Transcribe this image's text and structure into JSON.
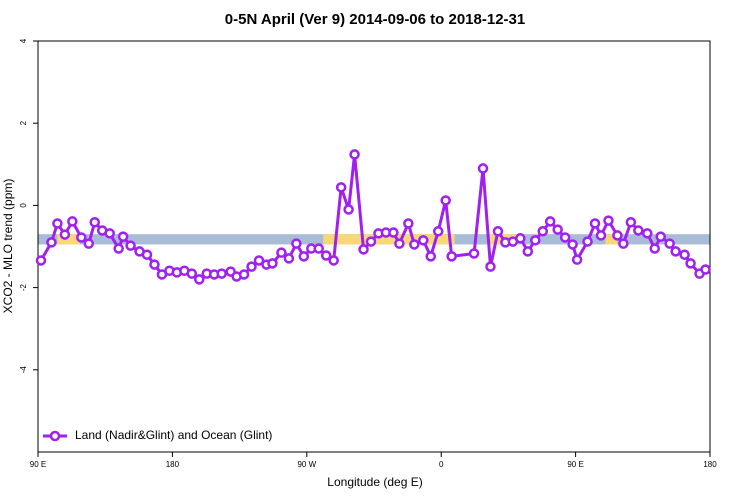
{
  "chart_data": {
    "type": "line",
    "title": "0-5N April (Ver 9)   2014-09-06 to 2018-12-31",
    "x_label": "Longitude (deg E)",
    "y_label": "XCO2 - MLO trend (ppm)",
    "xlim": [
      90,
      540
    ],
    "ylim": [
      -6,
      4
    ],
    "xticks": [
      {
        "value": 90,
        "label": "90 E"
      },
      {
        "value": 180,
        "label": "180"
      },
      {
        "value": 270,
        "label": "90 W"
      },
      {
        "value": 360,
        "label": "0"
      },
      {
        "value": 450,
        "label": "90 E"
      },
      {
        "value": 540,
        "label": "180"
      }
    ],
    "yticks": [
      -4,
      -2,
      0,
      2,
      4
    ],
    "legend_position": "bottom-left",
    "band": {
      "range": [
        -0.95,
        -0.7
      ],
      "color": "#a8bcd8",
      "highlight_color": "#f8d778",
      "highlights": [
        [
          103,
          118
        ],
        [
          281,
          369
        ],
        [
          391,
          411
        ],
        [
          470,
          478
        ]
      ]
    },
    "x": [
      92,
      99,
      103,
      108,
      113,
      119,
      124,
      128,
      133,
      138,
      144,
      147,
      152,
      158,
      163,
      168,
      173,
      178,
      183,
      188,
      193,
      198,
      203,
      208,
      213,
      219,
      223,
      228,
      233,
      238,
      243,
      247,
      253,
      258,
      263,
      268,
      273,
      278,
      283,
      288,
      293,
      298,
      302,
      308,
      313,
      318,
      323,
      328,
      332,
      338,
      342,
      348,
      353,
      358,
      363,
      367,
      382,
      388,
      393,
      398,
      403,
      408,
      413,
      418,
      423,
      428,
      433,
      438,
      443,
      448,
      451,
      458,
      463,
      467,
      472,
      478,
      482,
      487,
      492,
      498,
      503,
      507,
      513,
      517,
      523,
      527,
      533,
      537
    ],
    "series": [
      {
        "name": "Land (Nadir&Glint) and Ocean (Glint)",
        "color": "#a020f0",
        "values": [
          -1.34,
          -0.9,
          -0.44,
          -0.71,
          -0.39,
          -0.78,
          -0.93,
          -0.41,
          -0.61,
          -0.68,
          -1.05,
          -0.76,
          -0.98,
          -1.12,
          -1.2,
          -1.44,
          -1.68,
          -1.59,
          -1.63,
          -1.59,
          -1.66,
          -1.8,
          -1.66,
          -1.68,
          -1.66,
          -1.61,
          -1.73,
          -1.68,
          -1.49,
          -1.34,
          -1.44,
          -1.41,
          -1.15,
          -1.29,
          -0.93,
          -1.24,
          -1.05,
          -1.05,
          -1.22,
          -1.34,
          0.44,
          -0.1,
          1.24,
          -1.07,
          -0.88,
          -0.68,
          -0.66,
          -0.66,
          -0.93,
          -0.44,
          -0.95,
          -0.85,
          -1.24,
          -0.63,
          0.12,
          -1.24,
          -1.17,
          0.9,
          -1.49,
          -0.63,
          -0.9,
          -0.88,
          -0.8,
          -1.12,
          -0.85,
          -0.63,
          -0.39,
          -0.59,
          -0.78,
          -0.95,
          -1.32,
          -0.88,
          -0.44,
          -0.73,
          -0.37,
          -0.73,
          -0.93,
          -0.41,
          -0.61,
          -0.68,
          -1.05,
          -0.76,
          -0.93,
          -1.12,
          -1.2,
          -1.41,
          -1.66,
          -1.56
        ]
      }
    ]
  }
}
